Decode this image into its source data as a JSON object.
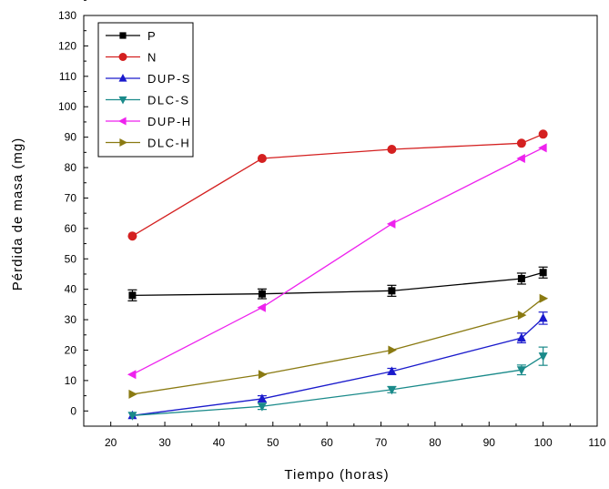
{
  "chart_data": {
    "type": "line",
    "title": "",
    "xlabel": "Tiempo (horas)",
    "ylabel": "Pérdida de masa (mg)",
    "xlim": [
      15,
      110
    ],
    "ylim": [
      -5,
      130
    ],
    "xticks": [
      20,
      30,
      40,
      50,
      60,
      70,
      80,
      90,
      100,
      110
    ],
    "yticks": [
      0,
      10,
      20,
      30,
      40,
      50,
      60,
      70,
      80,
      90,
      100,
      110,
      120,
      130
    ],
    "grid": false,
    "legend_position": "top-left",
    "x": [
      24,
      48,
      72,
      96,
      100
    ],
    "series": [
      {
        "name": "P",
        "color": "#000000",
        "marker": "square",
        "values": [
          38,
          38.5,
          39.5,
          43.5,
          45.5
        ],
        "errors": [
          1.8,
          1.6,
          1.8,
          1.8,
          1.8
        ]
      },
      {
        "name": "N",
        "color": "#d42020",
        "marker": "circle",
        "values": [
          57.5,
          83,
          86,
          88,
          91
        ],
        "errors": [
          0,
          0,
          0,
          0,
          0
        ]
      },
      {
        "name": "DUP-S",
        "color": "#1a1acc",
        "marker": "triangle-up",
        "values": [
          -1.5,
          4,
          13,
          24,
          30.5
        ],
        "errors": [
          0,
          1,
          1,
          1.6,
          2
        ]
      },
      {
        "name": "DLC-S",
        "color": "#1a8a8a",
        "marker": "triangle-down",
        "values": [
          -1.5,
          1.5,
          7,
          13.5,
          18
        ],
        "errors": [
          0,
          1,
          1,
          1.6,
          3
        ]
      },
      {
        "name": "DUP-H",
        "color": "#ee22ee",
        "marker": "triangle-left",
        "values": [
          12,
          34,
          61.5,
          83,
          86.5
        ],
        "errors": [
          0,
          0,
          0,
          0,
          0
        ]
      },
      {
        "name": "DLC-H",
        "color": "#8a7a12",
        "marker": "triangle-right",
        "values": [
          5.5,
          12,
          20,
          31.5,
          37
        ],
        "errors": [
          0,
          0,
          0,
          0,
          0
        ]
      }
    ]
  }
}
